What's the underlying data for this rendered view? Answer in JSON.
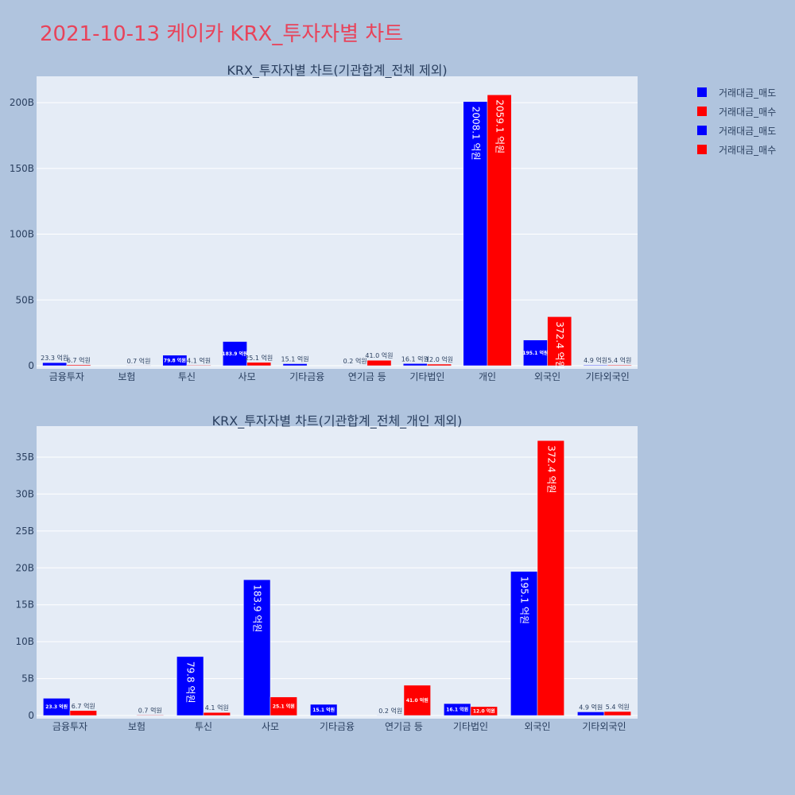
{
  "page_title": "2021-10-13 케이카 KRX_투자자별 차트",
  "colors": {
    "sell": "#0000ff",
    "buy": "#ff0000",
    "plot_bg": "#e5ecf6",
    "page_bg": "#b0c4de"
  },
  "legend": [
    {
      "label": "거래대금_매도",
      "color": "#0000ff"
    },
    {
      "label": "거래대금_매수",
      "color": "#ff0000"
    },
    {
      "label": "거래대금_매도",
      "color": "#0000ff"
    },
    {
      "label": "거래대금_매수",
      "color": "#ff0000"
    }
  ],
  "chart_data": [
    {
      "type": "bar",
      "title": "KRX_투자자별 차트(기관합계_전체 제외)",
      "categories": [
        "금융투자",
        "보험",
        "투신",
        "사모",
        "기타금융",
        "연기금 등",
        "기타법인",
        "개인",
        "외국인",
        "기타외국인"
      ],
      "ylim": [
        0,
        220
      ],
      "yticks": [
        0,
        50,
        100,
        150,
        200
      ],
      "ytick_labels": [
        "0",
        "50B",
        "100B",
        "150B",
        "200B"
      ],
      "grid": true,
      "legend_position": "top-right",
      "series": [
        {
          "name": "거래대금_매도",
          "color": "#0000ff",
          "values": [
            2.33,
            0,
            7.98,
            18.39,
            1.51,
            0.02,
            1.61,
            200.81,
            19.51,
            0.49
          ],
          "labels": [
            "23.3 억원",
            "",
            "79.8 억원",
            "183.9 억원",
            "15.1 억원",
            "0.2 억원",
            "16.1 억원",
            "2008.1 억원",
            "195.1 억원",
            "4.9 억원"
          ]
        },
        {
          "name": "거래대금_매수",
          "color": "#ff0000",
          "values": [
            0.67,
            0.07,
            0.41,
            2.51,
            0,
            4.1,
            1.2,
            205.91,
            37.24,
            0.54
          ],
          "labels": [
            "6.7 억원",
            "0.7 억원",
            "4.1 억원",
            "25.1 억원",
            "",
            "41.0 억원",
            "12.0 억원",
            "2059.1 억원",
            "372.4 억원",
            "5.4 억원"
          ]
        }
      ]
    },
    {
      "type": "bar",
      "title": "KRX_투자자별 차트(기관합계_전체_개인 제외)",
      "categories": [
        "금융투자",
        "보험",
        "투신",
        "사모",
        "기타금융",
        "연기금 등",
        "기타법인",
        "외국인",
        "기타외국인"
      ],
      "ylim": [
        0,
        39.2
      ],
      "yticks": [
        0,
        5,
        10,
        15,
        20,
        25,
        30,
        35
      ],
      "ytick_labels": [
        "0",
        "5B",
        "10B",
        "15B",
        "20B",
        "25B",
        "30B",
        "35B"
      ],
      "grid": true,
      "series": [
        {
          "name": "거래대금_매도",
          "color": "#0000ff",
          "values": [
            2.33,
            0,
            7.98,
            18.39,
            1.51,
            0.02,
            1.61,
            19.51,
            0.49
          ],
          "labels": [
            "23.3 억원",
            "",
            "79.8 억원",
            "183.9 억원",
            "15.1 억원",
            "0.2 억원",
            "16.1 억원",
            "195.1 억원",
            "4.9 억원"
          ]
        },
        {
          "name": "거래대금_매수",
          "color": "#ff0000",
          "values": [
            0.67,
            0.07,
            0.41,
            2.51,
            0,
            4.1,
            1.2,
            37.24,
            0.54
          ],
          "labels": [
            "6.7 억원",
            "0.7 억원",
            "4.1 억원",
            "25.1 억원",
            "",
            "41.0 억원",
            "12.0 억원",
            "372.4 억원",
            "5.4 억원"
          ]
        }
      ]
    }
  ]
}
